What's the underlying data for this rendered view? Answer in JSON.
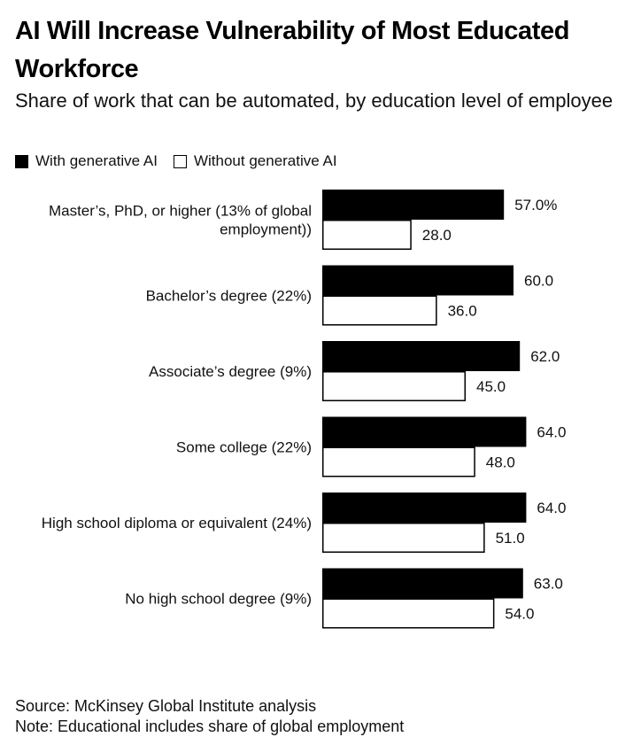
{
  "header": {
    "title": "AI Will Increase Vulnerability of Most Educated Workforce",
    "subtitle": "Share of work that can be automated, by education level of employee"
  },
  "legend": {
    "with_label": "With generative AI",
    "without_label": "Without generative AI"
  },
  "footer": {
    "source": "Source: McKinsey Global Institute analysis",
    "note": "Note: Educational includes share of global employment"
  },
  "colors": {
    "with": "#000000",
    "without": "#ffffff",
    "border": "#000000"
  },
  "chart_data": {
    "type": "bar",
    "orientation": "horizontal",
    "title": "AI Will Increase Vulnerability of Most Educated Workforce",
    "subtitle": "Share of work that can be automated, by education level of employee",
    "categories": [
      [
        "Master’s, PhD, or higher (13% of global",
        "employment))"
      ],
      [
        "Bachelor’s degree (22%)"
      ],
      [
        "Associate’s degree (9%)"
      ],
      [
        "Some college (22%)"
      ],
      [
        "High school diploma or equivalent (24%)"
      ],
      [
        "No high school degree (9%)"
      ]
    ],
    "series": [
      {
        "name": "With generative AI",
        "values": [
          57.0,
          60.0,
          62.0,
          64.0,
          64.0,
          63.0
        ],
        "labels": [
          "57.0%",
          "60.0",
          "62.0",
          "64.0",
          "64.0",
          "63.0"
        ]
      },
      {
        "name": "Without generative AI",
        "values": [
          28.0,
          36.0,
          45.0,
          48.0,
          51.0,
          54.0
        ],
        "labels": [
          "28.0",
          "36.0",
          "45.0",
          "48.0",
          "51.0",
          "54.0"
        ]
      }
    ],
    "xlim": [
      0,
      100
    ],
    "grid": false,
    "legend_position": "top-left"
  }
}
